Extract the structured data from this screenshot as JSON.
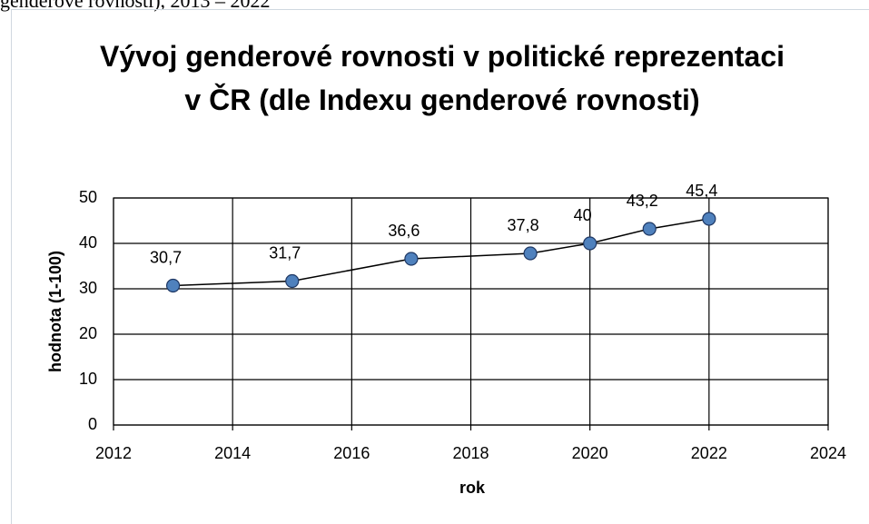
{
  "caption": "genderové rovnosti), 2013 – 2022",
  "chart_data": {
    "type": "line",
    "title": "Vývoj genderové rovnosti v politické reprezentaci v ČR (dle Indexu genderové rovnosti)",
    "x_label": "rok",
    "y_label": "hodnota (1-100)",
    "x": [
      2013,
      2015,
      2017,
      2019,
      2020,
      2021,
      2022
    ],
    "series": [
      {
        "name": "hodnota",
        "color": "#4f81bd",
        "values": [
          30.7,
          31.7,
          36.6,
          37.8,
          40,
          43.2,
          45.4
        ],
        "value_labels": [
          "30,7",
          "31,7",
          "36,6",
          "37,8",
          "40",
          "43,2",
          "45,4"
        ]
      }
    ],
    "xlim": [
      2012,
      2024
    ],
    "xticks": [
      2012,
      2014,
      2016,
      2018,
      2020,
      2022,
      2024
    ],
    "ylim": [
      0,
      50
    ],
    "yticks": [
      0,
      10,
      20,
      30,
      40,
      50
    ],
    "grid": true
  }
}
